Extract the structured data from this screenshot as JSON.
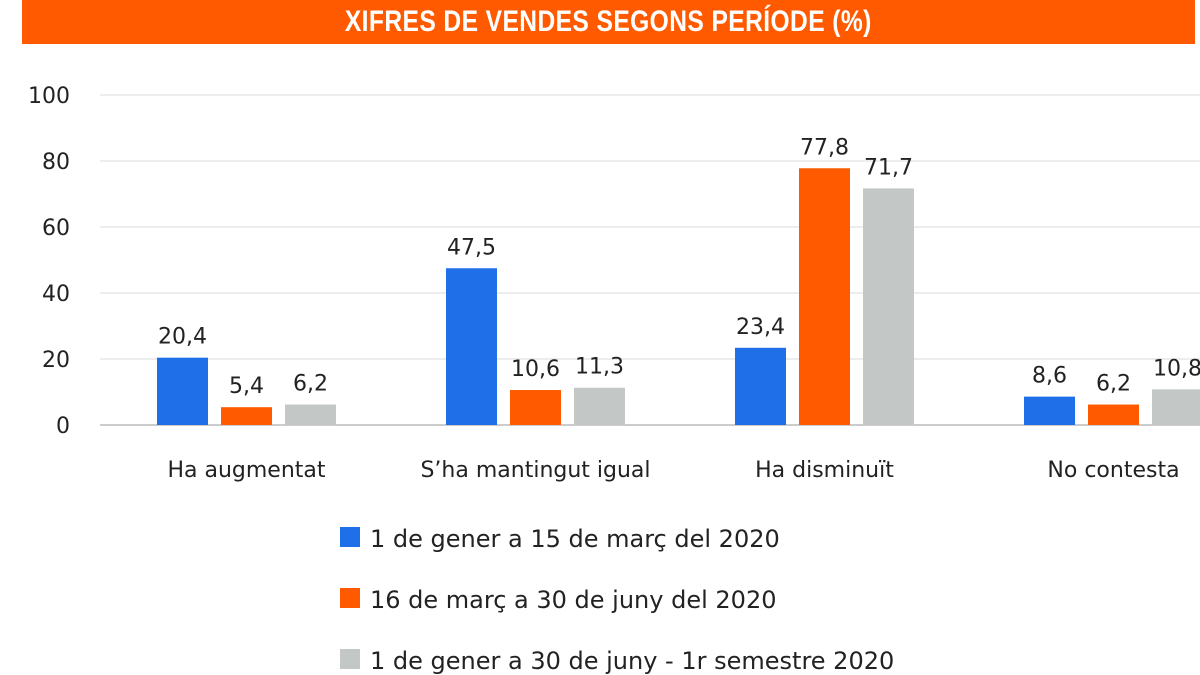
{
  "chart_data": {
    "type": "bar",
    "title": "XIFRES DE VENDES SEGONS PERÍODE (%)",
    "xlabel": "",
    "ylabel": "",
    "ylim": [
      0,
      100
    ],
    "yticks": [
      "0",
      "20",
      "40",
      "60",
      "80",
      "100"
    ],
    "grid": true,
    "legend_position": "bottom",
    "categories": [
      "Ha augmentat",
      "S’ha mantingut igual",
      "Ha disminuït",
      "No contesta"
    ],
    "series": [
      {
        "name": "1 de gener a 15 de març del 2020",
        "color": "#1f6fe8",
        "values": [
          20.4,
          47.5,
          23.4,
          8.6
        ],
        "labels": [
          "20,4",
          "47,5",
          "23,4",
          "8,6"
        ]
      },
      {
        "name": "16 de març a 30 de juny del 2020",
        "color": "#ff5a00",
        "values": [
          5.4,
          10.6,
          77.8,
          6.2
        ],
        "labels": [
          "5,4",
          "10,6",
          "77,8",
          "6,2"
        ]
      },
      {
        "name": "1 de gener a 30 de juny - 1r semestre 2020",
        "color": "#c3c8c6",
        "values": [
          6.2,
          11.3,
          71.7,
          10.8
        ],
        "labels": [
          "6,2",
          "11,3",
          "71,7",
          "10,8"
        ]
      }
    ]
  }
}
